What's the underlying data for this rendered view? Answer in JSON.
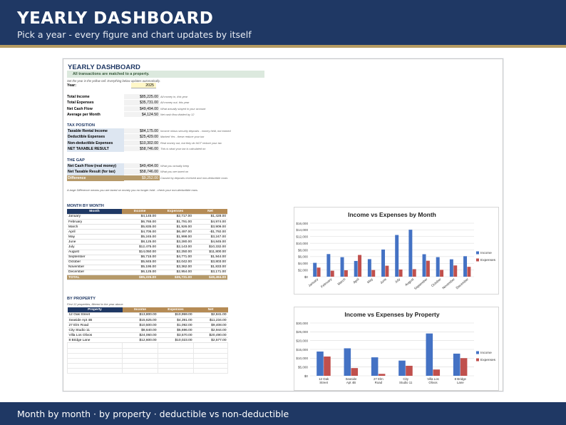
{
  "header": {
    "title": "YEARLY DASHBOARD",
    "subtitle": "Pick a year  -  every figure and chart updates by itself"
  },
  "footer": {
    "text": "Month by month  ·  by property  ·  deductible vs non-deductible"
  },
  "sheet": {
    "title": "YEARLY DASHBOARD",
    "banner": "All transactions are matched to a property.",
    "instruction": "Set the year in the yellow cell. Everything below updates automatically.",
    "year_label": "Year:",
    "year_value": "2025",
    "summary": [
      {
        "label": "Total Income",
        "value": "$85,225.00",
        "note": "All money in, this year"
      },
      {
        "label": "Total Expenses",
        "value": "$35,731.00",
        "note": "All money out, this year"
      },
      {
        "label": "Net Cash Flow",
        "value": "$49,494.00",
        "note": "What actually stayed in your account"
      },
      {
        "label": "Average per Month",
        "value": "$4,124.50",
        "note": "Net cash flow divided by 12"
      }
    ],
    "tax_heading": "TAX POSITION",
    "tax": [
      {
        "label": "Taxable Rental Income",
        "value": "$84,175.00",
        "note": "Income minus security deposits - money held, not earned"
      },
      {
        "label": "Deductible Expenses",
        "value": "$25,429.00",
        "note": "Marked Yes - these reduce your tax"
      },
      {
        "label": "Non-deductible Expenses",
        "value": "$10,302.00",
        "note": "Real money out, but they do NOT reduce your tax"
      },
      {
        "label": "NET TAXABLE RESULT",
        "value": "$58,746.00",
        "note": "This is what your tax is calculated on"
      }
    ],
    "gap_heading": "THE GAP",
    "gap": [
      {
        "label": "Net Cash Flow (real money)",
        "value": "$49,494.00",
        "note": "What you actually keep"
      },
      {
        "label": "Net Taxable Result (for tax)",
        "value": "$58,746.00",
        "note": "What you are taxed on"
      },
      {
        "label": "Difference",
        "value": "$9,252.00",
        "note": "Caused by deposits received and non-deductible costs"
      }
    ],
    "gap_note": "A large Difference means you are taxed on money you no longer hold - check your non-deductible rows.",
    "month_heading": "MONTH BY MONTH",
    "month_cols": [
      "Month",
      "Income",
      "Expenses",
      "Net"
    ],
    "months": [
      [
        "January",
        "$4,145.00",
        "$2,717.00",
        "$1,428.00"
      ],
      [
        "February",
        "$6,765.00",
        "$1,791.00",
        "$4,974.00"
      ],
      [
        "March",
        "$5,835.00",
        "$1,926.00",
        "$3,909.00"
      ],
      [
        "April",
        "$4,705.00",
        "$6,497.00",
        "-$1,792.00"
      ],
      [
        "May",
        "$5,245.00",
        "$1,998.00",
        "$3,247.00"
      ],
      [
        "June",
        "$8,125.00",
        "$3,280.00",
        "$4,845.00"
      ],
      [
        "July",
        "$12,475.00",
        "$2,143.00",
        "$10,332.00"
      ],
      [
        "August",
        "$14,050.00",
        "$2,250.00",
        "$11,800.00"
      ],
      [
        "September",
        "$6,715.00",
        "$4,771.00",
        "$1,944.00"
      ],
      [
        "October",
        "$5,845.00",
        "$2,042.00",
        "$3,803.00"
      ],
      [
        "November",
        "$5,195.00",
        "$3,362.00",
        "$1,833.00"
      ],
      [
        "December",
        "$6,125.00",
        "$2,954.00",
        "$3,171.00"
      ]
    ],
    "month_total": [
      "TOTAL",
      "$85,225.00",
      "$35,731.00",
      "$49,494.00"
    ],
    "prop_heading": "BY PROPERTY",
    "prop_note": "First 12 properties, filtered to the year above.",
    "prop_cols": [
      "Property",
      "Income",
      "Expenses",
      "Net"
    ],
    "properties": [
      [
        "12 Oak Street",
        "$13,800.00",
        "$10,959.00",
        "$2,841.00"
      ],
      [
        "Seaside Apt 4B",
        "$15,625.00",
        "$4,391.00",
        "$11,234.00"
      ],
      [
        "27 Elm Road",
        "$10,500.00",
        "$1,092.00",
        "$9,408.00"
      ],
      [
        "City Studio 11",
        "$8,640.00",
        "$5,696.00",
        "$2,944.00"
      ],
      [
        "Villa Los Olivos",
        "$24,060.00",
        "$3,570.00",
        "$20,490.00"
      ],
      [
        "8 Bridge Lane",
        "$12,600.00",
        "$10,023.00",
        "$2,577.00"
      ]
    ],
    "prop_blank_rows": 6
  },
  "colors": {
    "navy": "#1f3864",
    "gold": "#b59b62",
    "income": "#4472c4",
    "expenses": "#c0504d"
  },
  "chart_data": [
    {
      "type": "bar",
      "title": "Income vs Expenses by Month",
      "categories": [
        "January",
        "February",
        "March",
        "April",
        "May",
        "June",
        "July",
        "August",
        "September",
        "October",
        "November",
        "December"
      ],
      "series": [
        {
          "name": "Income",
          "values": [
            4145,
            6765,
            5835,
            4705,
            5245,
            8125,
            12475,
            14050,
            6715,
            5845,
            5195,
            6125
          ]
        },
        {
          "name": "Expenses",
          "values": [
            2717,
            1791,
            1926,
            6497,
            1998,
            3280,
            2143,
            2250,
            4771,
            2042,
            3362,
            2954
          ]
        }
      ],
      "ylim": [
        0,
        16000
      ],
      "yticks": [
        "$0",
        "$2,000",
        "$4,000",
        "$6,000",
        "$8,000",
        "$10,000",
        "$12,000",
        "$14,000",
        "$16,000"
      ],
      "legend": "right",
      "grid": true
    },
    {
      "type": "bar",
      "title": "Income vs Expenses by Property",
      "categories": [
        "12 Oak Street",
        "Seaside Apt 4B",
        "27 Elm Road",
        "City Studio 11",
        "Villa Los Olivos",
        "8 Bridge Lane"
      ],
      "series": [
        {
          "name": "Income",
          "values": [
            13800,
            15625,
            10500,
            8640,
            24060,
            12600
          ]
        },
        {
          "name": "Expenses",
          "values": [
            10959,
            4391,
            1092,
            5696,
            3570,
            10023
          ]
        }
      ],
      "ylim": [
        0,
        30000
      ],
      "yticks": [
        "$0",
        "$5,000",
        "$10,000",
        "$15,000",
        "$20,000",
        "$25,000",
        "$30,000"
      ],
      "legend": "right",
      "grid": true
    }
  ]
}
